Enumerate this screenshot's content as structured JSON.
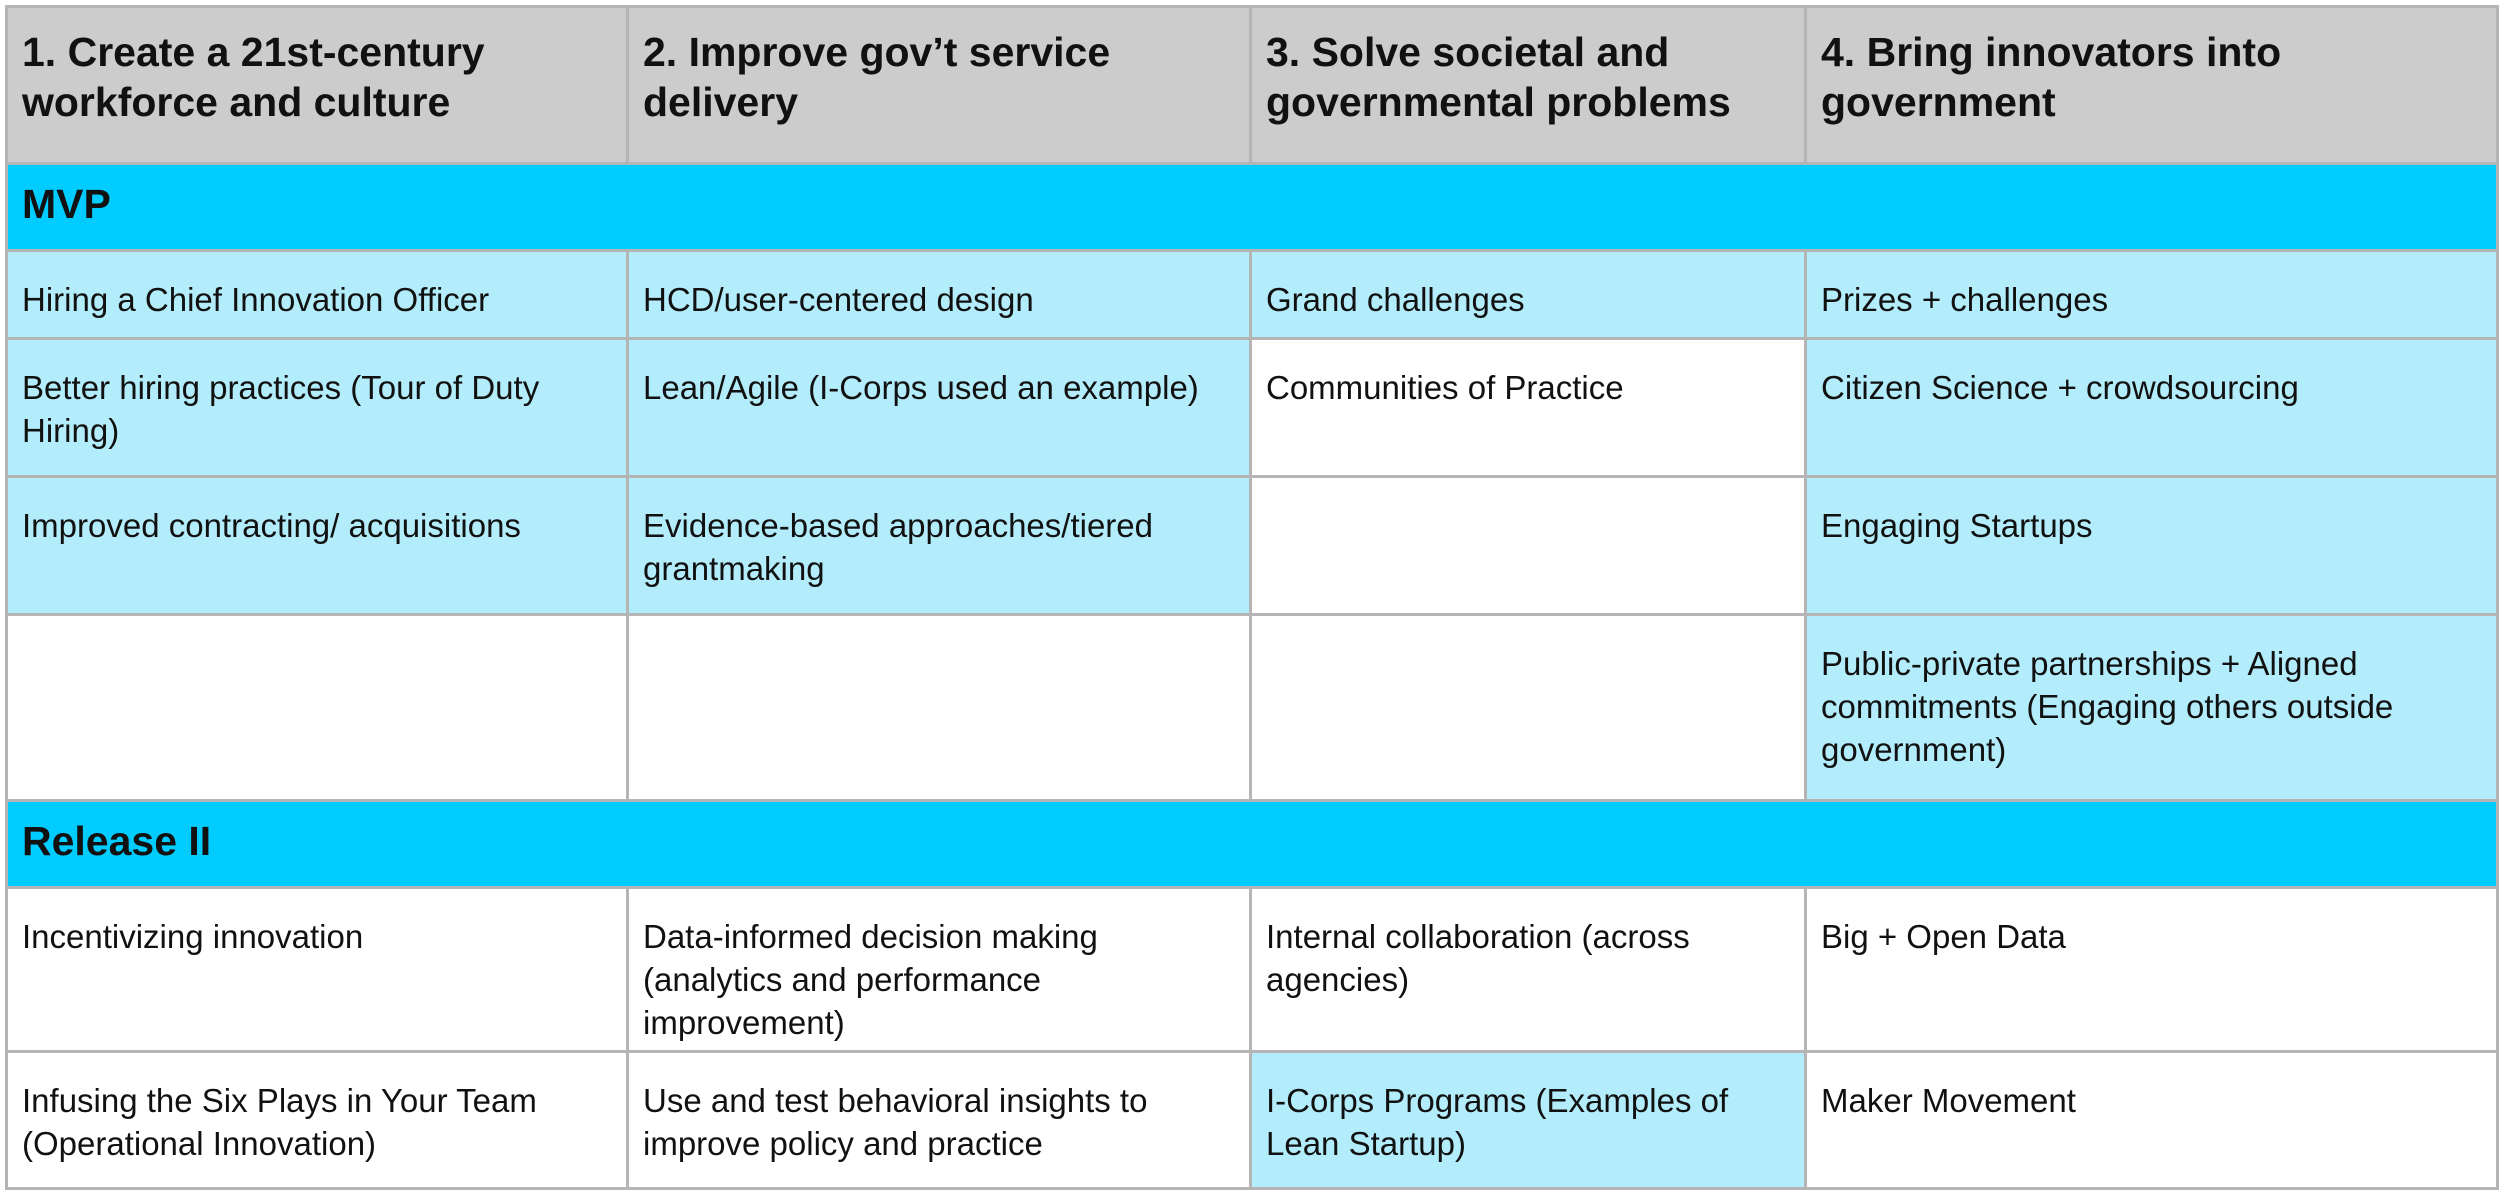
{
  "header": {
    "col1": "1. Create a 21st-century workforce and culture",
    "col2": "2. Improve gov’t service delivery",
    "col3": "3. Solve societal and governmental problems",
    "col4": "4. Bring innovators into government"
  },
  "sections": [
    {
      "title": "MVP",
      "rows": [
        [
          "Hiring a Chief Innovation Officer",
          "HCD/user-centered design",
          "Grand challenges",
          "Prizes + challenges"
        ],
        [
          "Better hiring practices (Tour of Duty Hiring)",
          "Lean/Agile (I-Corps used an example)",
          "Communities of Practice",
          "Citizen Science + crowdsourcing"
        ],
        [
          "Improved contracting/ acquisitions",
          "Evidence-based approaches/tiered grantmaking",
          "",
          "Engaging Startups"
        ],
        [
          "",
          "",
          "",
          "Public-private partnerships + Aligned commitments (Engaging others outside government)"
        ]
      ]
    },
    {
      "title": "Release II",
      "rows": [
        [
          "Incentivizing innovation",
          "Data-informed decision making (analytics and performance improvement)",
          "Internal collaboration (across agencies)",
          "Big + Open Data"
        ],
        [
          "Infusing the Six Plays in Your Team (Operational Innovation)",
          "Use and test behavioral insights to improve policy and practice",
          "I-Corps Programs (Examples of Lean Startup)",
          "Maker Movement"
        ]
      ]
    }
  ],
  "colors": {
    "header_bg": "#cccccc",
    "section_bg": "#00ccff",
    "highlight_bg": "#b3ecfa",
    "plain_bg": "#ffffff",
    "border": "#b5b5b5"
  }
}
